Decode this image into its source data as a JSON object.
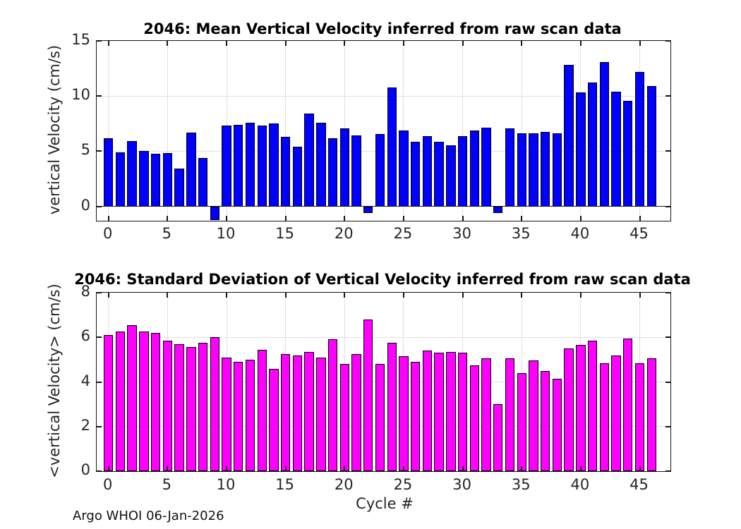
{
  "figure": {
    "footer": "Argo WHOI 06-Jan-2026",
    "background_color": "#FFFFFF",
    "grid_color": "#E1E1E1",
    "frame_color": "#151515"
  },
  "chart_data": [
    {
      "id": "mean-vertical-velocity",
      "type": "bar",
      "title": "2046: Mean Vertical Velocity inferred from raw scan data",
      "xlabel": "",
      "ylabel": "vertical Velocity (cm/s)",
      "bar_color": "#0000FF",
      "bar_edge_color": "#000000",
      "grid": true,
      "legend": "none",
      "xlim": [
        -1,
        47.6
      ],
      "ylim": [
        -1.3,
        15
      ],
      "xticks": [
        0,
        5,
        10,
        15,
        20,
        25,
        30,
        35,
        40,
        45
      ],
      "yticks": [
        0,
        5,
        10,
        15
      ],
      "x": [
        0,
        1,
        2,
        3,
        4,
        5,
        6,
        7,
        8,
        9,
        10,
        11,
        12,
        13,
        14,
        15,
        16,
        17,
        18,
        19,
        20,
        21,
        22,
        23,
        24,
        25,
        26,
        27,
        28,
        29,
        30,
        31,
        32,
        33,
        34,
        35,
        36,
        37,
        38,
        39,
        40,
        41,
        42,
        43,
        44,
        45,
        46
      ],
      "values": [
        6.2,
        4.9,
        5.9,
        5.05,
        4.8,
        4.85,
        3.4,
        6.7,
        4.4,
        -1.25,
        7.3,
        7.4,
        7.6,
        7.35,
        7.5,
        6.3,
        5.4,
        8.4,
        7.6,
        6.15,
        7.1,
        6.45,
        -0.6,
        6.55,
        10.75,
        6.9,
        5.85,
        6.35,
        5.85,
        5.55,
        6.4,
        6.9,
        7.15,
        -0.6,
        7.05,
        6.65,
        6.65,
        6.75,
        6.65,
        12.85,
        10.35,
        11.2,
        13.1,
        10.4,
        9.55,
        12.2,
        10.9
      ]
    },
    {
      "id": "std-vertical-velocity",
      "type": "bar",
      "title": "2046: Standard Deviation of Vertical Velocity inferred from raw scan data",
      "xlabel": "Cycle #",
      "ylabel": "<vertical Velocity> (cm/s)",
      "bar_color": "#FF00FF",
      "bar_edge_color": "#000000",
      "grid": true,
      "legend": "none",
      "xlim": [
        -1,
        47.6
      ],
      "ylim": [
        0,
        8
      ],
      "xticks": [
        0,
        5,
        10,
        15,
        20,
        25,
        30,
        35,
        40,
        45
      ],
      "yticks": [
        0,
        2,
        4,
        6,
        8
      ],
      "x": [
        0,
        1,
        2,
        3,
        4,
        5,
        6,
        7,
        8,
        9,
        10,
        11,
        12,
        13,
        14,
        15,
        16,
        17,
        18,
        19,
        20,
        21,
        22,
        23,
        24,
        25,
        26,
        27,
        28,
        29,
        30,
        31,
        32,
        33,
        34,
        35,
        36,
        37,
        38,
        39,
        40,
        41,
        42,
        43,
        44,
        45,
        46
      ],
      "values": [
        6.1,
        6.25,
        6.55,
        6.25,
        6.2,
        5.85,
        5.7,
        5.55,
        5.75,
        6.0,
        5.1,
        4.9,
        5.0,
        5.45,
        4.6,
        5.25,
        5.2,
        5.35,
        5.1,
        5.9,
        4.8,
        5.25,
        6.8,
        4.8,
        5.75,
        5.15,
        4.9,
        5.4,
        5.3,
        5.35,
        5.3,
        4.75,
        5.05,
        3.0,
        5.05,
        4.4,
        4.95,
        4.5,
        4.15,
        5.5,
        5.65,
        5.85,
        4.85,
        5.2,
        5.95,
        4.85,
        5.05
      ]
    }
  ]
}
